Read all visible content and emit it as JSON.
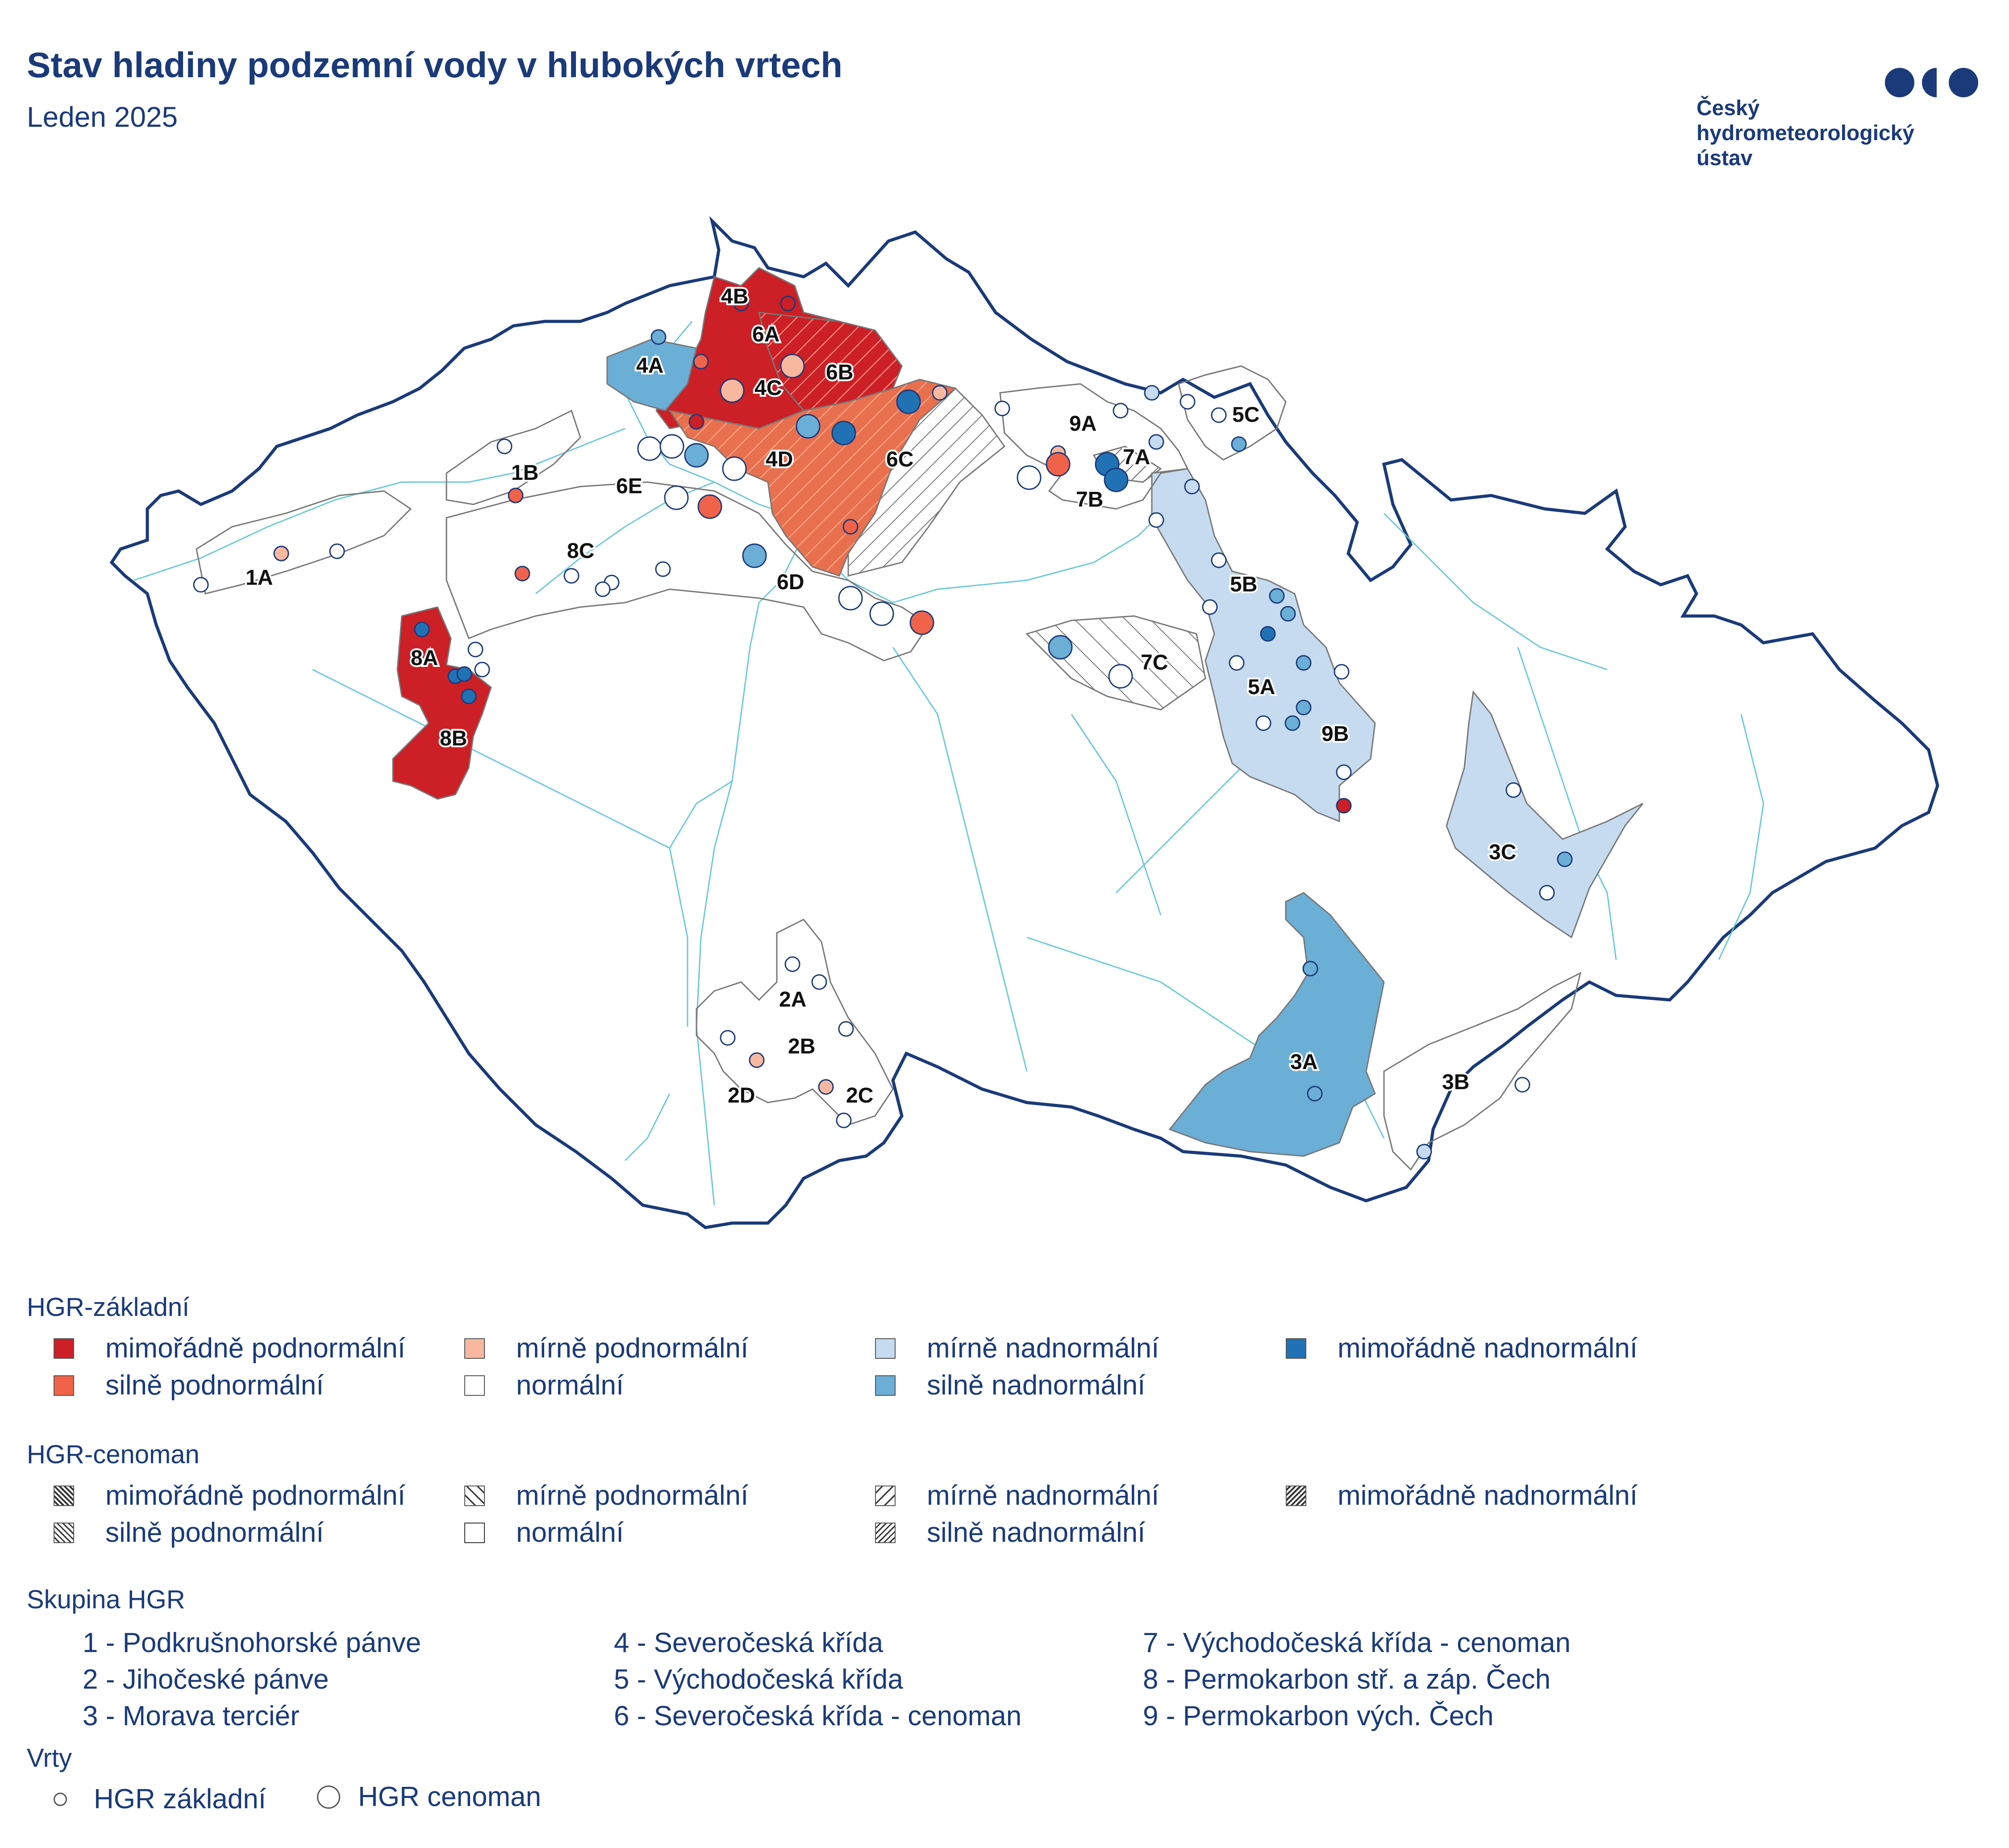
{
  "title": "Stav hladiny podzemní vody v hlubokých vrtech",
  "subtitle": "Leden 2025",
  "logo": {
    "lines": [
      "Český",
      "hydrometeorologický",
      "ústav"
    ],
    "color": "#1a3a7a"
  },
  "colors": {
    "mimoradne_pod": "#cc1f26",
    "silne_pod": "#f0634a",
    "mirne_pod": "#f8b8a0",
    "normalni": "#ffffff",
    "mirne_nad": "#c6dbef",
    "silne_nad": "#6baed6",
    "mimoradne_nad": "#2171b5",
    "border": "#1a3a7a",
    "river": "#5bc3d4"
  },
  "region_labels": [
    "1A",
    "1B",
    "2A",
    "2B",
    "2C",
    "2D",
    "3A",
    "3B",
    "3C",
    "4A",
    "4B",
    "4C",
    "4D",
    "5A",
    "5B",
    "5C",
    "6A",
    "6B",
    "6C",
    "6D",
    "6E",
    "7A",
    "7B",
    "7C",
    "8A",
    "8B",
    "8C",
    "9A",
    "9B"
  ],
  "legend": {
    "basic_title": "HGR-základní",
    "basic_items": [
      {
        "label": "mimořádně podnormální",
        "color": "#cc1f26"
      },
      {
        "label": "silně podnormální",
        "color": "#f0634a"
      },
      {
        "label": "mírně podnormální",
        "color": "#f8b8a0"
      },
      {
        "label": "normální",
        "color": "#ffffff"
      },
      {
        "label": "mírně nadnormální",
        "color": "#c6dbef"
      },
      {
        "label": "silně nadnormální",
        "color": "#6baed6"
      },
      {
        "label": "mimořádně nadnormální",
        "color": "#2171b5"
      }
    ],
    "cenoman_title": "HGR-cenoman",
    "cenoman_items": [
      {
        "label": "mimořádně podnormální",
        "pattern": "back-dense"
      },
      {
        "label": "silně podnormální",
        "pattern": "back-medium"
      },
      {
        "label": "mírně podnormální",
        "pattern": "back-sparse"
      },
      {
        "label": "normální",
        "pattern": "none"
      },
      {
        "label": "mírně nadnormální",
        "pattern": "fwd-sparse"
      },
      {
        "label": "silně nadnormální",
        "pattern": "fwd-medium"
      },
      {
        "label": "mimořádně nadnormální",
        "pattern": "fwd-dense"
      }
    ],
    "group_title": "Skupina HGR",
    "groups": [
      "1 - Podkrušnohorské pánve",
      "2 - Jihočeské pánve",
      "3 - Morava terciér",
      "4 - Severočeská křída",
      "5 - Východočeská křída",
      "6 - Severočeská křída - cenoman",
      "7 - Východočeská křída - cenoman",
      "8 - Permokarbon stř. a záp. Čech",
      "9 - Permokarbon vých. Čech"
    ],
    "wells_title": "Vrty",
    "wells": [
      "HGR základní",
      "HGR cenoman"
    ]
  }
}
